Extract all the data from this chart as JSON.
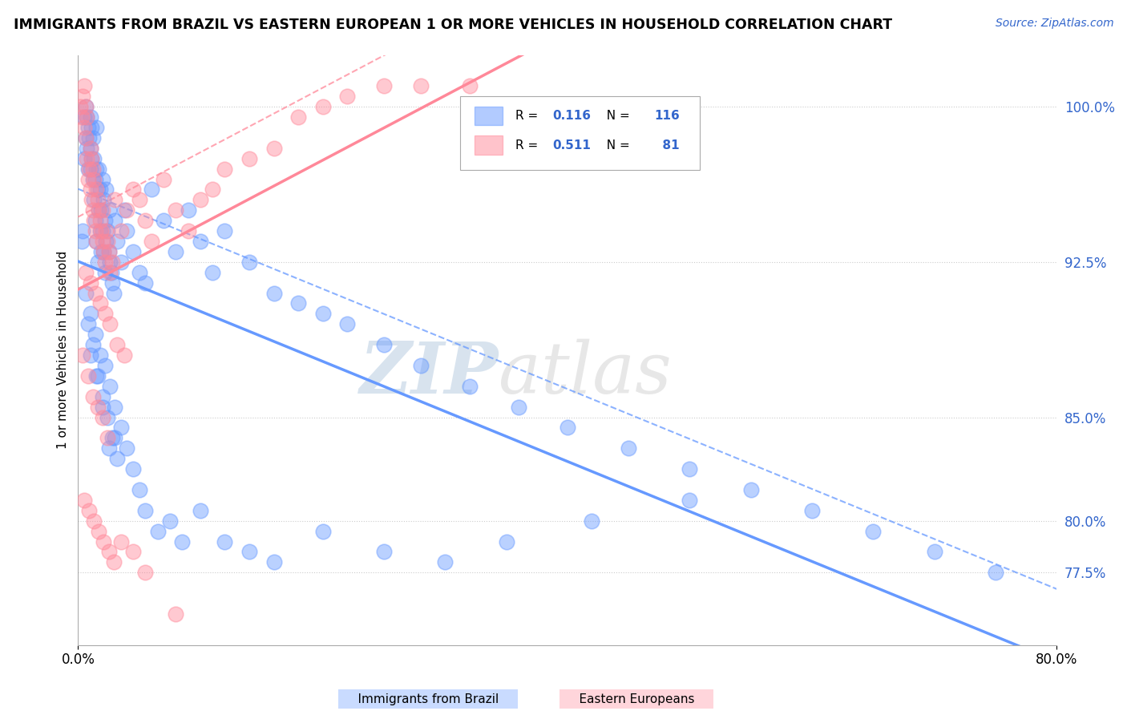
{
  "title": "IMMIGRANTS FROM BRAZIL VS EASTERN EUROPEAN 1 OR MORE VEHICLES IN HOUSEHOLD CORRELATION CHART",
  "source": "Source: ZipAtlas.com",
  "xlabel_blue": "Immigrants from Brazil",
  "xlabel_pink": "Eastern Europeans",
  "ylabel": "1 or more Vehicles in Household",
  "x_min": 0.0,
  "x_max": 80.0,
  "y_min": 74.0,
  "y_max": 102.5,
  "yticks": [
    77.5,
    80.0,
    85.0,
    92.5,
    100.0
  ],
  "ytick_labels": [
    "77.5%",
    "80.0%",
    "85.0%",
    "92.5%",
    "100.0%"
  ],
  "xticks": [
    0.0,
    80.0
  ],
  "xtick_labels": [
    "0.0%",
    "80.0%"
  ],
  "R_blue": 0.116,
  "N_blue": 116,
  "R_pink": 0.511,
  "N_pink": 81,
  "color_blue": "#6699FF",
  "color_pink": "#FF8899",
  "color_text": "#3366CC",
  "background_color": "#FFFFFF",
  "grid_color": "#CCCCCC",
  "watermark_color": "#DDDDDD",
  "blue_scatter_x": [
    0.3,
    0.4,
    0.5,
    0.5,
    0.6,
    0.6,
    0.7,
    0.7,
    0.8,
    0.8,
    0.9,
    1.0,
    1.0,
    1.0,
    1.1,
    1.1,
    1.2,
    1.2,
    1.3,
    1.3,
    1.4,
    1.4,
    1.5,
    1.5,
    1.5,
    1.6,
    1.6,
    1.7,
    1.7,
    1.8,
    1.8,
    1.9,
    1.9,
    2.0,
    2.0,
    2.1,
    2.1,
    2.2,
    2.2,
    2.3,
    2.3,
    2.4,
    2.5,
    2.5,
    2.6,
    2.7,
    2.8,
    2.9,
    3.0,
    3.2,
    3.5,
    3.8,
    4.0,
    4.5,
    5.0,
    5.5,
    6.0,
    7.0,
    8.0,
    9.0,
    10.0,
    11.0,
    12.0,
    14.0,
    16.0,
    18.0,
    20.0,
    22.0,
    25.0,
    28.0,
    32.0,
    36.0,
    40.0,
    45.0,
    50.0,
    55.0,
    60.0,
    65.0,
    70.0,
    75.0,
    1.0,
    1.5,
    2.0,
    2.5,
    3.0,
    0.8,
    1.2,
    1.6,
    2.0,
    2.4,
    2.8,
    3.2,
    0.6,
    1.0,
    1.4,
    1.8,
    2.2,
    2.6,
    3.0,
    3.5,
    4.0,
    4.5,
    5.0,
    5.5,
    6.5,
    7.5,
    8.5,
    10.0,
    12.0,
    14.0,
    16.0,
    20.0,
    25.0,
    30.0,
    35.0,
    42.0,
    50.0
  ],
  "blue_scatter_y": [
    93.5,
    94.0,
    97.5,
    99.5,
    98.5,
    100.0,
    99.5,
    98.0,
    97.0,
    99.0,
    98.5,
    97.0,
    98.0,
    99.5,
    97.5,
    99.0,
    96.5,
    98.5,
    95.5,
    97.5,
    94.5,
    96.5,
    93.5,
    97.0,
    99.0,
    92.5,
    96.0,
    97.0,
    95.0,
    96.0,
    94.0,
    95.0,
    93.0,
    94.0,
    96.5,
    93.0,
    95.5,
    92.0,
    94.5,
    96.0,
    93.5,
    94.0,
    93.0,
    95.0,
    92.5,
    92.0,
    91.5,
    91.0,
    94.5,
    93.5,
    92.5,
    95.0,
    94.0,
    93.0,
    92.0,
    91.5,
    96.0,
    94.5,
    93.0,
    95.0,
    93.5,
    92.0,
    94.0,
    92.5,
    91.0,
    90.5,
    90.0,
    89.5,
    88.5,
    87.5,
    86.5,
    85.5,
    84.5,
    83.5,
    82.5,
    81.5,
    80.5,
    79.5,
    78.5,
    77.5,
    88.0,
    87.0,
    85.5,
    83.5,
    84.0,
    89.5,
    88.5,
    87.0,
    86.0,
    85.0,
    84.0,
    83.0,
    91.0,
    90.0,
    89.0,
    88.0,
    87.5,
    86.5,
    85.5,
    84.5,
    83.5,
    82.5,
    81.5,
    80.5,
    79.5,
    80.0,
    79.0,
    80.5,
    79.0,
    78.5,
    78.0,
    79.5,
    78.5,
    78.0,
    79.0,
    80.0,
    81.0
  ],
  "pink_scatter_x": [
    0.2,
    0.3,
    0.4,
    0.5,
    0.5,
    0.6,
    0.6,
    0.7,
    0.7,
    0.8,
    0.9,
    1.0,
    1.0,
    1.1,
    1.1,
    1.2,
    1.2,
    1.3,
    1.3,
    1.4,
    1.5,
    1.5,
    1.6,
    1.7,
    1.8,
    1.9,
    2.0,
    2.0,
    2.1,
    2.2,
    2.3,
    2.4,
    2.5,
    2.6,
    2.8,
    3.0,
    3.5,
    4.0,
    4.5,
    5.0,
    5.5,
    6.0,
    7.0,
    8.0,
    9.0,
    10.0,
    11.0,
    12.0,
    14.0,
    16.0,
    18.0,
    20.0,
    22.0,
    25.0,
    28.0,
    32.0,
    0.6,
    1.0,
    1.4,
    1.8,
    2.2,
    2.6,
    3.2,
    3.8,
    0.4,
    0.8,
    1.2,
    1.6,
    2.0,
    2.4,
    0.5,
    0.9,
    1.3,
    1.7,
    2.1,
    2.5,
    2.9,
    3.5,
    4.5,
    5.5,
    8.0
  ],
  "pink_scatter_y": [
    100.0,
    99.5,
    100.5,
    99.0,
    101.0,
    98.5,
    100.0,
    97.5,
    99.5,
    96.5,
    97.0,
    96.0,
    98.0,
    95.5,
    97.5,
    95.0,
    97.0,
    94.5,
    96.5,
    94.0,
    93.5,
    96.0,
    95.5,
    95.0,
    94.5,
    94.0,
    93.5,
    95.0,
    93.0,
    92.5,
    94.0,
    93.5,
    93.0,
    92.0,
    92.5,
    95.5,
    94.0,
    95.0,
    96.0,
    95.5,
    94.5,
    93.5,
    96.5,
    95.0,
    94.0,
    95.5,
    96.0,
    97.0,
    97.5,
    98.0,
    99.5,
    100.0,
    100.5,
    101.0,
    101.0,
    101.0,
    92.0,
    91.5,
    91.0,
    90.5,
    90.0,
    89.5,
    88.5,
    88.0,
    88.0,
    87.0,
    86.0,
    85.5,
    85.0,
    84.0,
    81.0,
    80.5,
    80.0,
    79.5,
    79.0,
    78.5,
    78.0,
    79.0,
    78.5,
    77.5,
    75.5
  ]
}
